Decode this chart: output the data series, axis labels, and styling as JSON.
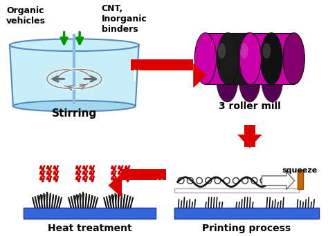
{
  "bg_color": "#ffffff",
  "arrow_color": "#dd0000",
  "text_color": "#000000",
  "labels": {
    "organic": "Organic\nvehicles",
    "cnt": "CNT,\nInorganic\nbinders",
    "stirring": "Stirring",
    "roller": "3 roller mill",
    "squeeze": "squeeze",
    "printing": "Printing process",
    "heat": "Heat treatment"
  },
  "roller_magenta": "#cc00aa",
  "roller_dark": "#1a1a1a",
  "bowl_color": "#c8eef8",
  "bowl_edge": "#5588bb",
  "blue_substrate": "#3366dd",
  "green_arrow": "#009900",
  "heat_color": "#cc0000",
  "white": "#ffffff",
  "gray": "#888888",
  "orange": "#cc6600"
}
